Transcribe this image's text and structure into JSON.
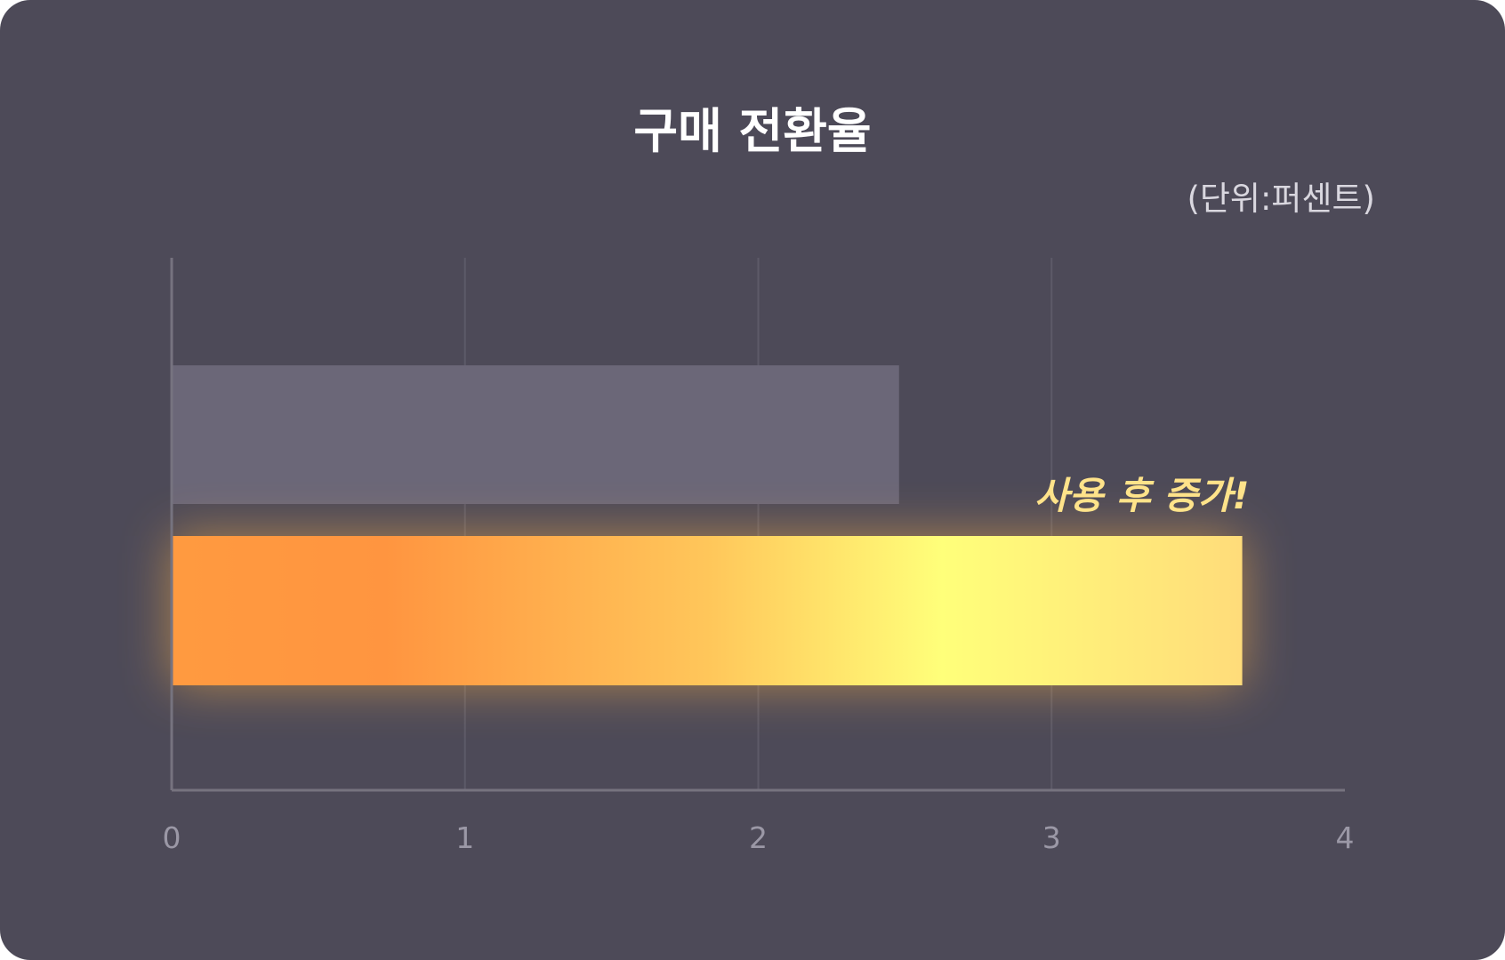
{
  "chart_data": {
    "type": "bar",
    "orientation": "horizontal",
    "title": "구매 전환율",
    "unit_label": "(단위:퍼센트)",
    "xlabel": "",
    "ylabel": "",
    "categories": [
      "",
      ""
    ],
    "values": [
      2.48,
      3.65
    ],
    "xlim": [
      0,
      4
    ],
    "ticks": [
      "0",
      "1",
      "2",
      "3",
      "4"
    ],
    "grid": true,
    "annotation": "사용 후 증가!",
    "colors": {
      "background": "#4d4a58",
      "bar_before": "#6b6778",
      "bar_after_gradient": [
        "#ff9a40",
        "#ff9540",
        "#ffc65a",
        "#ffff7a",
        "#ffdc7a"
      ],
      "grid": "#5d5a68",
      "axis": "#76737f"
    }
  }
}
